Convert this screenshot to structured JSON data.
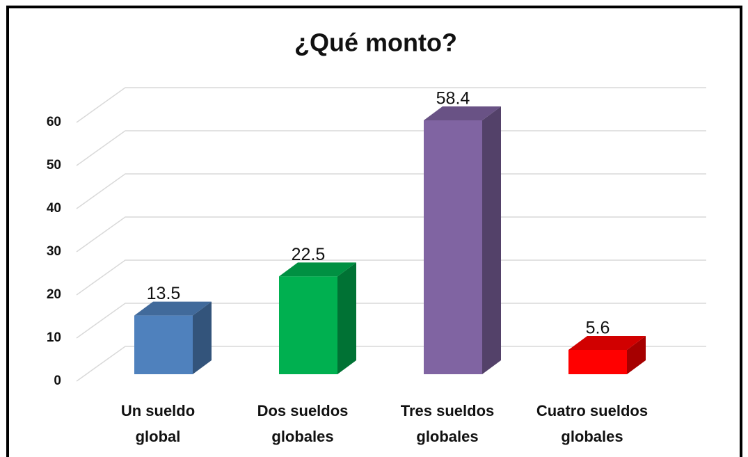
{
  "chart_data": {
    "type": "bar3d",
    "title": "¿Qué monto?",
    "categories": [
      "Un sueldo global",
      "Dos sueldos globales",
      "Tres sueldos globales",
      "Cuatro sueldos globales"
    ],
    "values": [
      13.5,
      22.5,
      58.4,
      5.6
    ],
    "colors": [
      "#4f81bd",
      "#00b050",
      "#8064a2",
      "#ff0000"
    ],
    "ylim": [
      0,
      60
    ],
    "yticks": [
      0,
      10,
      20,
      30,
      40,
      50,
      60
    ],
    "grid": true
  }
}
